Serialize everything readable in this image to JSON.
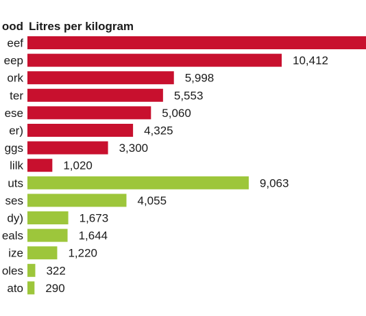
{
  "chart_data": {
    "type": "bar",
    "orientation": "horizontal",
    "headers": {
      "category": "ood",
      "value": "Litres per kilogram"
    },
    "categories": [
      "eef",
      "eep",
      "ork",
      "ter",
      "ese",
      "er)",
      "ggs",
      "lilk",
      "uts",
      "ses",
      "dy)",
      "eals",
      "ize",
      "oles",
      "ato"
    ],
    "values": [
      null,
      10412,
      5998,
      5553,
      5060,
      4325,
      3300,
      1020,
      9063,
      4055,
      1673,
      1644,
      1220,
      322,
      290
    ],
    "value_labels": [
      "",
      "10,412",
      "5,998",
      "5,553",
      "5,060",
      "4,325",
      "3,300",
      "1,020",
      "9,063",
      "4,055",
      "1,673",
      "1,644",
      "1,220",
      "322",
      "290"
    ],
    "group": [
      "animal",
      "animal",
      "animal",
      "animal",
      "animal",
      "animal",
      "animal",
      "animal",
      "plant",
      "plant",
      "plant",
      "plant",
      "plant",
      "plant",
      "plant"
    ],
    "colors": {
      "animal": "#c8102e",
      "plant": "#9dc63b"
    },
    "xlim": [
      0,
      10412
    ],
    "grid": false,
    "legend": "none"
  }
}
